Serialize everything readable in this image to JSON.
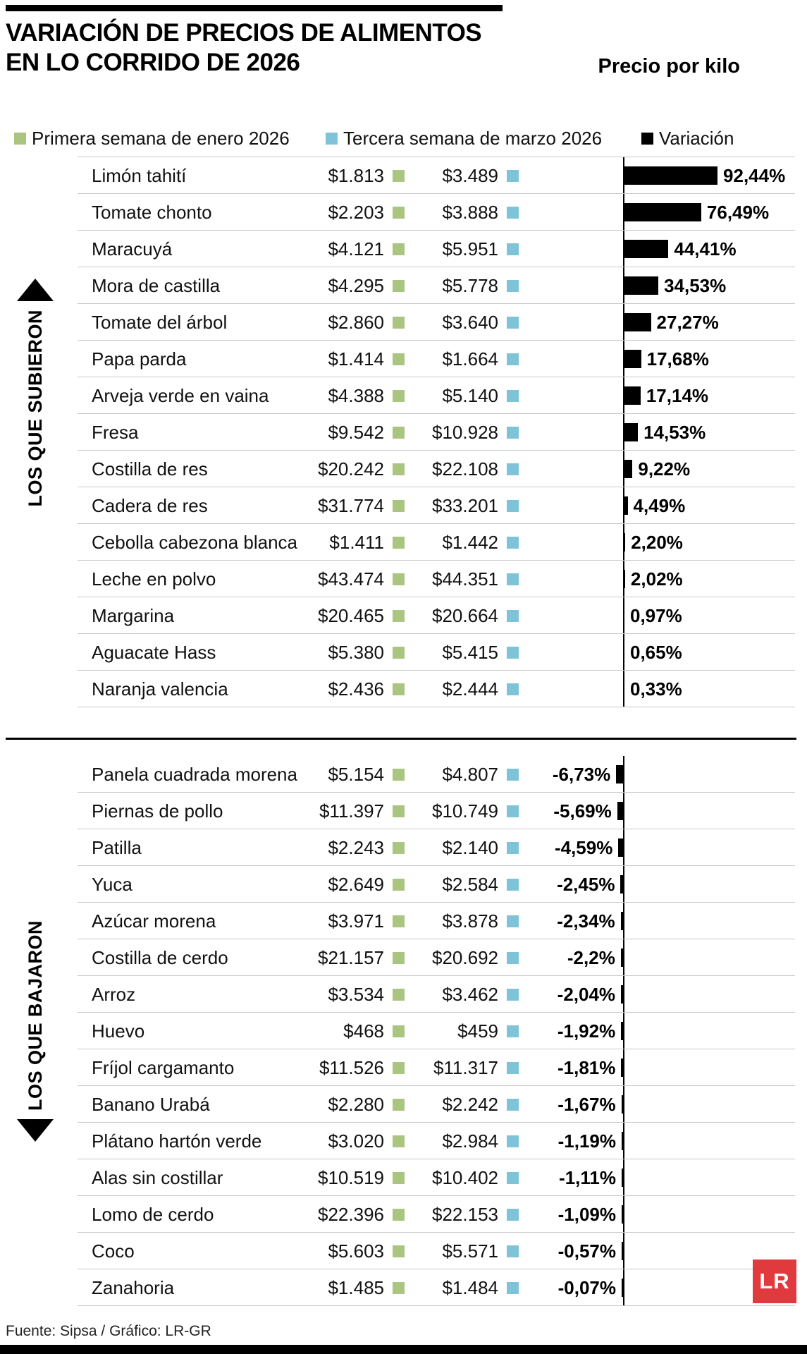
{
  "colors": {
    "green": "#a9c57f",
    "blue": "#7fc3d8",
    "bar": "#000000",
    "logo_red": "#e0393e",
    "row_line": "#c8c8c8"
  },
  "header": {
    "title_line1": "VARIACIÓN DE PRECIOS DE ALIMENTOS",
    "title_line2": "EN LO CORRIDO DE 2026",
    "price_unit": "Precio por kilo"
  },
  "legend": {
    "items": [
      {
        "label": "Primera semana de enero 2026",
        "color": "#a9c57f"
      },
      {
        "label": "Tercera semana de marzo 2026",
        "color": "#7fc3d8"
      },
      {
        "label": "Variación",
        "color": "#000000"
      }
    ]
  },
  "sections": [
    {
      "id": "subieron",
      "side_label": "LOS QUE SUBIERON",
      "direction": "up",
      "rows": [
        {
          "name": "Limón tahití",
          "p1": "$1.813",
          "p2": "$3.489",
          "pct": "92,44%",
          "value": 92.44
        },
        {
          "name": "Tomate chonto",
          "p1": "$2.203",
          "p2": "$3.888",
          "pct": "76,49%",
          "value": 76.49
        },
        {
          "name": "Maracuyá",
          "p1": "$4.121",
          "p2": "$5.951",
          "pct": "44,41%",
          "value": 44.41
        },
        {
          "name": "Mora de castilla",
          "p1": "$4.295",
          "p2": "$5.778",
          "pct": "34,53%",
          "value": 34.53
        },
        {
          "name": "Tomate del árbol",
          "p1": "$2.860",
          "p2": "$3.640",
          "pct": "27,27%",
          "value": 27.27
        },
        {
          "name": "Papa parda",
          "p1": "$1.414",
          "p2": "$1.664",
          "pct": "17,68%",
          "value": 17.68
        },
        {
          "name": "Arveja verde en vaina",
          "p1": "$4.388",
          "p2": "$5.140",
          "pct": "17,14%",
          "value": 17.14
        },
        {
          "name": "Fresa",
          "p1": "$9.542",
          "p2": "$10.928",
          "pct": "14,53%",
          "value": 14.53
        },
        {
          "name": "Costilla de res",
          "p1": "$20.242",
          "p2": "$22.108",
          "pct": "9,22%",
          "value": 9.22
        },
        {
          "name": "Cadera de res",
          "p1": "$31.774",
          "p2": "$33.201",
          "pct": "4,49%",
          "value": 4.49
        },
        {
          "name": "Cebolla cabezona blanca",
          "p1": "$1.411",
          "p2": "$1.442",
          "pct": "2,20%",
          "value": 2.2
        },
        {
          "name": "Leche en polvo",
          "p1": "$43.474",
          "p2": "$44.351",
          "pct": "2,02%",
          "value": 2.02
        },
        {
          "name": "Margarina",
          "p1": "$20.465",
          "p2": "$20.664",
          "pct": "0,97%",
          "value": 0.97
        },
        {
          "name": "Aguacate Hass",
          "p1": "$5.380",
          "p2": "$5.415",
          "pct": "0,65%",
          "value": 0.65
        },
        {
          "name": "Naranja valencia",
          "p1": "$2.436",
          "p2": "$2.444",
          "pct": "0,33%",
          "value": 0.33
        }
      ]
    },
    {
      "id": "bajaron",
      "side_label": "LOS QUE BAJARON",
      "direction": "down",
      "rows": [
        {
          "name": "Panela cuadrada morena",
          "p1": "$5.154",
          "p2": "$4.807",
          "pct": "-6,73%",
          "value": -6.73
        },
        {
          "name": "Piernas de pollo",
          "p1": "$11.397",
          "p2": "$10.749",
          "pct": "-5,69%",
          "value": -5.69
        },
        {
          "name": "Patilla",
          "p1": "$2.243",
          "p2": "$2.140",
          "pct": "-4,59%",
          "value": -4.59
        },
        {
          "name": "Yuca",
          "p1": "$2.649",
          "p2": "$2.584",
          "pct": "-2,45%",
          "value": -2.45
        },
        {
          "name": "Azúcar morena",
          "p1": "$3.971",
          "p2": "$3.878",
          "pct": "-2,34%",
          "value": -2.34
        },
        {
          "name": "Costilla de cerdo",
          "p1": "$21.157",
          "p2": "$20.692",
          "pct": "-2,2%",
          "value": -2.2
        },
        {
          "name": "Arroz",
          "p1": "$3.534",
          "p2": "$3.462",
          "pct": "-2,04%",
          "value": -2.04
        },
        {
          "name": "Huevo",
          "p1": "$468",
          "p2": "$459",
          "pct": "-1,92%",
          "value": -1.92
        },
        {
          "name": "Fríjol cargamanto",
          "p1": "$11.526",
          "p2": "$11.317",
          "pct": "-1,81%",
          "value": -1.81
        },
        {
          "name": "Banano Urabá",
          "p1": "$2.280",
          "p2": "$2.242",
          "pct": "-1,67%",
          "value": -1.67
        },
        {
          "name": "Plátano hartón verde",
          "p1": "$3.020",
          "p2": "$2.984",
          "pct": "-1,19%",
          "value": -1.19
        },
        {
          "name": "Alas sin costillar",
          "p1": "$10.519",
          "p2": "$10.402",
          "pct": "-1,11%",
          "value": -1.11
        },
        {
          "name": "Lomo de cerdo",
          "p1": "$22.396",
          "p2": "$22.153",
          "pct": "-1,09%",
          "value": -1.09
        },
        {
          "name": "Coco",
          "p1": "$5.603",
          "p2": "$5.571",
          "pct": "-0,57%",
          "value": -0.57
        },
        {
          "name": "Zanahoria",
          "p1": "$1.485",
          "p2": "$1.484",
          "pct": "-0,07%",
          "value": -0.07
        }
      ]
    }
  ],
  "footer": {
    "source": "Fuente: Sipsa / Gráfico: LR-GR",
    "logo_text": "LR"
  },
  "chart_data": {
    "type": "bar",
    "title": "Variación de precios de alimentos en lo corrido de 2026",
    "unit_note": "Precio por kilo",
    "legend_position": "top",
    "categories": [
      "Limón tahití",
      "Tomate chonto",
      "Maracuyá",
      "Mora de castilla",
      "Tomate del árbol",
      "Papa parda",
      "Arveja verde en vaina",
      "Fresa",
      "Costilla de res",
      "Cadera de res",
      "Cebolla cabezona blanca",
      "Leche en polvo",
      "Margarina",
      "Aguacate Hass",
      "Naranja valencia",
      "Panela cuadrada morena",
      "Piernas de pollo",
      "Patilla",
      "Yuca",
      "Azúcar morena",
      "Costilla de cerdo",
      "Arroz",
      "Huevo",
      "Fríjol cargamanto",
      "Banano Urabá",
      "Plátano hartón verde",
      "Alas sin costillar",
      "Lomo de cerdo",
      "Coco",
      "Zanahoria"
    ],
    "series": [
      {
        "name": "Primera semana de enero 2026 ($/kilo)",
        "values": [
          1813,
          2203,
          4121,
          4295,
          2860,
          1414,
          4388,
          9542,
          20242,
          31774,
          1411,
          43474,
          20465,
          5380,
          2436,
          5154,
          11397,
          2243,
          2649,
          3971,
          21157,
          3534,
          468,
          11526,
          2280,
          3020,
          10519,
          22396,
          5603,
          1485
        ]
      },
      {
        "name": "Tercera semana de marzo 2026 ($/kilo)",
        "values": [
          3489,
          3888,
          5951,
          5778,
          3640,
          1664,
          5140,
          10928,
          22108,
          33201,
          1442,
          44351,
          20664,
          5415,
          2444,
          4807,
          10749,
          2140,
          2584,
          3878,
          20692,
          3462,
          459,
          11317,
          2242,
          2984,
          10402,
          22153,
          5571,
          1484
        ]
      },
      {
        "name": "Variación (%)",
        "values": [
          92.44,
          76.49,
          44.41,
          34.53,
          27.27,
          17.68,
          17.14,
          14.53,
          9.22,
          4.49,
          2.2,
          2.02,
          0.97,
          0.65,
          0.33,
          -6.73,
          -5.69,
          -4.59,
          -2.45,
          -2.34,
          -2.2,
          -2.04,
          -1.92,
          -1.81,
          -1.67,
          -1.19,
          -1.11,
          -1.09,
          -0.57,
          -0.07
        ]
      }
    ],
    "groups": [
      {
        "label": "Los que subieron",
        "category_index_range": [
          0,
          14
        ]
      },
      {
        "label": "Los que bajaron",
        "category_index_range": [
          15,
          29
        ]
      }
    ]
  }
}
